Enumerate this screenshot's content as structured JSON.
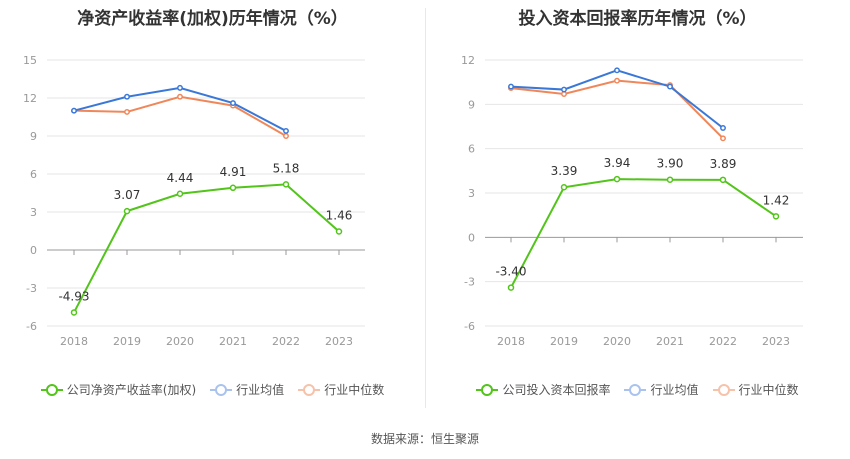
{
  "source": "数据来源：恒生聚源",
  "colors": {
    "company": "#52c41a",
    "avg": "#3a78d8",
    "median": "#f0875a",
    "grid": "#e6e6e6",
    "axis": "#999999"
  },
  "chart_data": [
    {
      "type": "line",
      "title": "净资产收益率(加权)历年情况（%）",
      "categories": [
        "2018",
        "2019",
        "2020",
        "2021",
        "2022",
        "2023"
      ],
      "ylim": [
        -6,
        15
      ],
      "yticks": [
        "15",
        "12",
        "9",
        "6",
        "3",
        "0",
        "-3",
        "-6"
      ],
      "ytick_values": [
        15,
        12,
        9,
        6,
        3,
        0,
        -3,
        -6
      ],
      "series": [
        {
          "name": "公司净资产收益率(加权)",
          "values": [
            -4.93,
            3.07,
            4.44,
            4.91,
            5.18,
            1.46
          ],
          "labels": [
            "-4.93",
            "3.07",
            "4.44",
            "4.91",
            "5.18",
            "1.46"
          ]
        },
        {
          "name": "行业均值",
          "values": [
            11.0,
            12.1,
            12.8,
            11.6,
            9.4,
            null
          ]
        },
        {
          "name": "行业中位数",
          "values": [
            11.0,
            10.9,
            12.1,
            11.4,
            9.0,
            null
          ]
        }
      ]
    },
    {
      "type": "line",
      "title": "投入资本回报率历年情况（%）",
      "categories": [
        "2018",
        "2019",
        "2020",
        "2021",
        "2022",
        "2023"
      ],
      "ylim": [
        -6,
        12
      ],
      "yticks": [
        "12",
        "9",
        "6",
        "3",
        "0",
        "-3",
        "-6"
      ],
      "ytick_values": [
        12,
        9,
        6,
        3,
        0,
        -3,
        -6
      ],
      "series": [
        {
          "name": "公司投入资本回报率",
          "values": [
            -3.4,
            3.39,
            3.94,
            3.9,
            3.89,
            1.42
          ],
          "labels": [
            "-3.40",
            "3.39",
            "3.94",
            "3.90",
            "3.89",
            "1.42"
          ]
        },
        {
          "name": "行业均值",
          "values": [
            10.2,
            10.0,
            11.3,
            10.2,
            7.4,
            null
          ]
        },
        {
          "name": "行业中位数",
          "values": [
            10.1,
            9.7,
            10.6,
            10.3,
            6.7,
            null
          ]
        }
      ]
    }
  ]
}
